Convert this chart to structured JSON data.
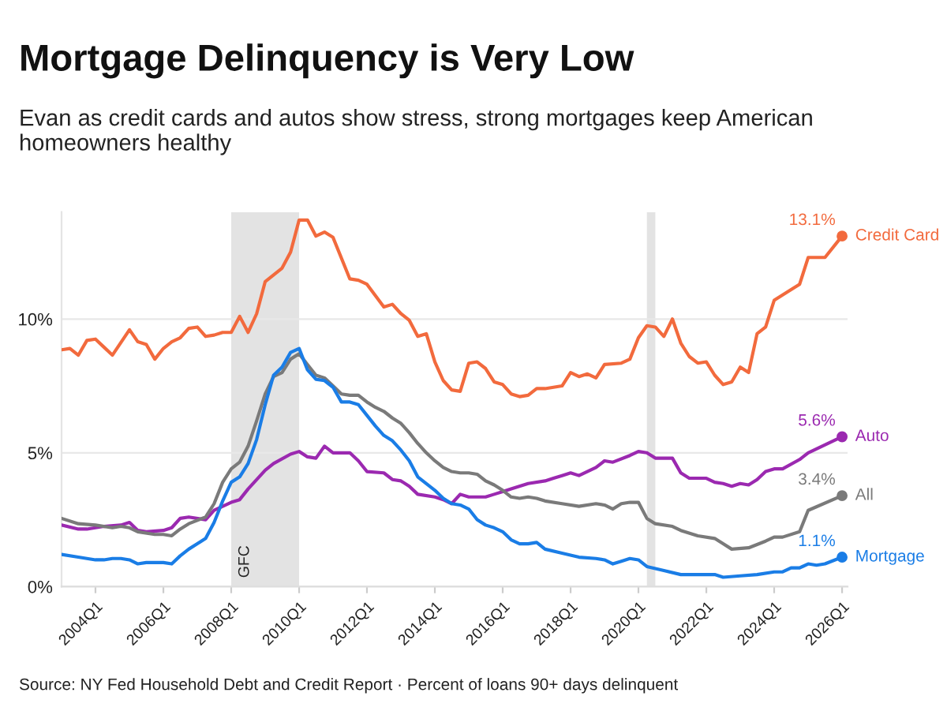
{
  "chart_data": {
    "type": "line",
    "title": "Mortgage Delinquency is Very Low",
    "subtitle": "Evan as credit cards and autos show stress, strong mortgages keep American homeowners healthy",
    "annotations": [
      "Source: NY Fed Household Debt and Credit Report · Percent of loans 90+ days delinquent",
      {
        "text": "13.1%",
        "x": "2026-01",
        "y": 13.1
      },
      {
        "text": "5.6%",
        "x": "2026-01",
        "y": 5.6
      },
      {
        "text": "3.4%",
        "x": "2026-01",
        "y": 3.4
      },
      {
        "text": "1.1%",
        "x": "2026-01",
        "y": 1.1
      }
    ],
    "xlim": [
      "2003-01",
      "2026-03"
    ],
    "xticks": [
      {
        "value": "2004-01",
        "label": "2004Q1"
      },
      {
        "value": "2006-01",
        "label": "2006Q1"
      },
      {
        "value": "2008-01",
        "label": "2008Q1"
      },
      {
        "value": "2010-01",
        "label": "2010Q1"
      },
      {
        "value": "2012-01",
        "label": "2012Q1"
      },
      {
        "value": "2014-01",
        "label": "2014Q1"
      },
      {
        "value": "2016-01",
        "label": "2016Q1"
      },
      {
        "value": "2018-01",
        "label": "2018Q1"
      },
      {
        "value": "2020-01",
        "label": "2020Q1"
      },
      {
        "value": "2022-01",
        "label": "2022Q1"
      },
      {
        "value": "2024-01",
        "label": "2024Q1"
      },
      {
        "value": "2026-01",
        "label": "2026Q1"
      }
    ],
    "ylim": [
      0,
      14
    ],
    "yticks": [
      {
        "value": 0,
        "label": "0%"
      },
      {
        "value": 5,
        "label": "5%"
      },
      {
        "value": 10,
        "label": "10%"
      }
    ],
    "grid": "y",
    "bands": [
      {
        "axis": "x",
        "from": "2008-01",
        "to": "2010-01",
        "label": "GFC",
        "color": "#e3e3e3"
      },
      {
        "axis": "x",
        "from": "2020-04",
        "to": "2020-07",
        "color": "#e3e3e3"
      }
    ],
    "series": [
      {
        "name": "Credit Card",
        "color": "#f26a3d",
        "x": [
          "2003-01",
          "2003-04",
          "2003-07",
          "2003-10",
          "2004-01",
          "2004-04",
          "2004-07",
          "2005-01",
          "2005-04",
          "2005-07",
          "2005-10",
          "2006-01",
          "2006-04",
          "2006-07",
          "2006-10",
          "2007-01",
          "2007-04",
          "2007-07",
          "2007-10",
          "2008-01",
          "2008-04",
          "2008-07",
          "2008-10",
          "2009-01",
          "2009-07",
          "2009-10",
          "2010-01",
          "2010-04",
          "2010-07",
          "2010-10",
          "2011-01",
          "2011-07",
          "2011-10",
          "2012-01",
          "2012-07",
          "2012-10",
          "2013-01",
          "2013-04",
          "2013-07",
          "2013-10",
          "2014-01",
          "2014-04",
          "2014-07",
          "2014-10",
          "2015-01",
          "2015-04",
          "2015-07",
          "2015-10",
          "2016-01",
          "2016-04",
          "2016-07",
          "2016-10",
          "2017-01",
          "2017-04",
          "2017-07",
          "2017-10",
          "2018-01",
          "2018-04",
          "2018-07",
          "2018-10",
          "2019-01",
          "2019-07",
          "2019-10",
          "2020-01",
          "2020-04",
          "2020-07",
          "2020-10",
          "2021-01",
          "2021-04",
          "2021-07",
          "2021-10",
          "2022-01",
          "2022-04",
          "2022-07",
          "2022-10",
          "2023-01",
          "2023-04",
          "2023-07",
          "2023-10",
          "2024-01",
          "2024-04",
          "2024-07",
          "2024-10",
          "2025-01",
          "2025-04",
          "2025-07",
          "2026-01"
        ],
        "values": [
          8.85,
          8.9,
          8.65,
          9.2,
          9.25,
          8.95,
          8.65,
          9.6,
          9.15,
          9.05,
          8.5,
          8.9,
          9.15,
          9.3,
          9.65,
          9.7,
          9.35,
          9.4,
          9.5,
          9.5,
          10.1,
          9.5,
          10.2,
          11.4,
          11.9,
          12.5,
          13.7,
          13.7,
          13.1,
          13.25,
          13.05,
          11.5,
          11.45,
          11.3,
          10.45,
          10.55,
          10.2,
          9.95,
          9.35,
          9.45,
          8.4,
          7.7,
          7.35,
          7.3,
          8.35,
          8.4,
          8.15,
          7.65,
          7.55,
          7.2,
          7.1,
          7.15,
          7.4,
          7.4,
          7.45,
          7.5,
          8.0,
          7.85,
          7.95,
          7.8,
          8.3,
          8.35,
          8.5,
          9.3,
          9.75,
          9.7,
          9.35,
          10.0,
          9.1,
          8.6,
          8.35,
          8.4,
          7.9,
          7.55,
          7.65,
          8.2,
          8.0,
          9.45,
          9.7,
          10.7,
          10.9,
          11.1,
          11.3,
          12.3,
          12.3,
          12.3,
          13.1
        ]
      },
      {
        "name": "Auto",
        "color": "#9b29b0",
        "x": [
          "2003-01",
          "2003-07",
          "2003-10",
          "2004-04",
          "2004-10",
          "2005-01",
          "2005-04",
          "2005-07",
          "2006-01",
          "2006-04",
          "2006-07",
          "2006-10",
          "2007-04",
          "2007-07",
          "2008-01",
          "2008-04",
          "2008-07",
          "2009-01",
          "2009-04",
          "2009-10",
          "2010-01",
          "2010-04",
          "2010-07",
          "2010-10",
          "2011-01",
          "2011-07",
          "2011-10",
          "2012-01",
          "2012-07",
          "2012-10",
          "2013-01",
          "2013-04",
          "2013-07",
          "2014-01",
          "2014-04",
          "2014-07",
          "2014-10",
          "2015-01",
          "2015-07",
          "2015-10",
          "2016-01",
          "2016-04",
          "2016-10",
          "2017-04",
          "2017-07",
          "2017-10",
          "2018-01",
          "2018-04",
          "2018-10",
          "2019-01",
          "2019-04",
          "2019-10",
          "2020-01",
          "2020-04",
          "2020-07",
          "2021-01",
          "2021-04",
          "2021-07",
          "2022-01",
          "2022-04",
          "2022-07",
          "2022-10",
          "2023-01",
          "2023-04",
          "2023-07",
          "2023-10",
          "2024-01",
          "2024-04",
          "2024-10",
          "2025-01",
          "2026-01"
        ],
        "values": [
          2.3,
          2.15,
          2.15,
          2.25,
          2.3,
          2.4,
          2.1,
          2.05,
          2.1,
          2.2,
          2.55,
          2.6,
          2.5,
          2.85,
          3.15,
          3.25,
          3.65,
          4.35,
          4.6,
          4.95,
          5.05,
          4.85,
          4.8,
          5.25,
          5.0,
          5.0,
          4.7,
          4.3,
          4.25,
          4.0,
          3.95,
          3.75,
          3.45,
          3.35,
          3.25,
          3.1,
          3.45,
          3.35,
          3.35,
          3.45,
          3.55,
          3.65,
          3.85,
          3.95,
          4.05,
          4.15,
          4.25,
          4.15,
          4.45,
          4.7,
          4.65,
          4.9,
          5.05,
          5.0,
          4.8,
          4.8,
          4.25,
          4.05,
          4.05,
          3.9,
          3.85,
          3.75,
          3.85,
          3.8,
          4.0,
          4.3,
          4.4,
          4.4,
          4.75,
          5.0,
          5.6
        ]
      },
      {
        "name": "All",
        "color": "#7a7a7a",
        "x": [
          "2003-01",
          "2003-07",
          "2004-01",
          "2004-07",
          "2004-10",
          "2005-01",
          "2005-04",
          "2005-10",
          "2006-01",
          "2006-04",
          "2006-07",
          "2006-10",
          "2007-04",
          "2007-07",
          "2007-10",
          "2008-01",
          "2008-04",
          "2008-07",
          "2008-10",
          "2009-01",
          "2009-04",
          "2009-07",
          "2009-10",
          "2010-01",
          "2010-04",
          "2010-07",
          "2010-10",
          "2011-01",
          "2011-04",
          "2011-07",
          "2011-10",
          "2012-01",
          "2012-04",
          "2012-07",
          "2012-10",
          "2013-01",
          "2013-04",
          "2013-07",
          "2013-10",
          "2014-01",
          "2014-04",
          "2014-07",
          "2014-10",
          "2015-01",
          "2015-04",
          "2015-07",
          "2015-10",
          "2016-01",
          "2016-04",
          "2016-07",
          "2016-10",
          "2017-01",
          "2017-04",
          "2017-10",
          "2018-04",
          "2018-10",
          "2019-01",
          "2019-04",
          "2019-07",
          "2019-10",
          "2020-01",
          "2020-04",
          "2020-07",
          "2021-01",
          "2021-04",
          "2021-10",
          "2022-04",
          "2022-07",
          "2022-10",
          "2023-04",
          "2023-10",
          "2024-01",
          "2024-04",
          "2024-10",
          "2025-01",
          "2026-01"
        ],
        "values": [
          2.55,
          2.35,
          2.3,
          2.2,
          2.25,
          2.2,
          2.05,
          1.95,
          1.95,
          1.9,
          2.15,
          2.35,
          2.6,
          3.1,
          3.9,
          4.4,
          4.65,
          5.25,
          6.2,
          7.2,
          7.85,
          8.0,
          8.5,
          8.7,
          8.3,
          7.9,
          7.8,
          7.5,
          7.2,
          7.15,
          7.15,
          6.9,
          6.7,
          6.55,
          6.3,
          6.1,
          5.75,
          5.35,
          5.0,
          4.7,
          4.45,
          4.3,
          4.25,
          4.25,
          4.2,
          3.95,
          3.8,
          3.6,
          3.35,
          3.3,
          3.35,
          3.3,
          3.2,
          3.1,
          3.0,
          3.1,
          3.05,
          2.9,
          3.1,
          3.15,
          3.15,
          2.55,
          2.35,
          2.25,
          2.1,
          1.9,
          1.8,
          1.6,
          1.4,
          1.45,
          1.7,
          1.85,
          1.85,
          2.05,
          2.85,
          3.4
        ]
      },
      {
        "name": "Mortgage",
        "color": "#1a7de6",
        "x": [
          "2003-01",
          "2003-07",
          "2004-01",
          "2004-04",
          "2004-07",
          "2004-10",
          "2005-01",
          "2005-04",
          "2005-07",
          "2006-01",
          "2006-04",
          "2006-07",
          "2006-10",
          "2007-01",
          "2007-04",
          "2007-07",
          "2007-10",
          "2008-01",
          "2008-04",
          "2008-07",
          "2008-10",
          "2009-01",
          "2009-04",
          "2009-07",
          "2009-10",
          "2010-01",
          "2010-04",
          "2010-07",
          "2010-10",
          "2011-01",
          "2011-04",
          "2011-07",
          "2011-10",
          "2012-01",
          "2012-04",
          "2012-07",
          "2012-10",
          "2013-01",
          "2013-04",
          "2013-07",
          "2013-10",
          "2014-01",
          "2014-04",
          "2014-07",
          "2014-10",
          "2015-01",
          "2015-04",
          "2015-07",
          "2015-10",
          "2016-01",
          "2016-04",
          "2016-07",
          "2016-10",
          "2017-01",
          "2017-04",
          "2017-10",
          "2018-04",
          "2018-10",
          "2019-01",
          "2019-04",
          "2019-07",
          "2019-10",
          "2020-01",
          "2020-04",
          "2020-10",
          "2021-04",
          "2021-10",
          "2022-04",
          "2022-07",
          "2023-01",
          "2023-07",
          "2024-01",
          "2024-04",
          "2024-07",
          "2024-10",
          "2025-01",
          "2025-04",
          "2025-07",
          "2026-01"
        ],
        "values": [
          1.2,
          1.1,
          1.0,
          1.0,
          1.05,
          1.05,
          1.0,
          0.85,
          0.9,
          0.9,
          0.85,
          1.15,
          1.4,
          1.6,
          1.8,
          2.4,
          3.2,
          3.9,
          4.1,
          4.6,
          5.5,
          6.8,
          7.9,
          8.2,
          8.75,
          8.9,
          8.1,
          7.75,
          7.7,
          7.45,
          6.9,
          6.9,
          6.8,
          6.4,
          6.0,
          5.65,
          5.45,
          5.1,
          4.7,
          4.1,
          3.85,
          3.6,
          3.3,
          3.1,
          3.05,
          2.9,
          2.5,
          2.3,
          2.2,
          2.05,
          1.75,
          1.6,
          1.6,
          1.65,
          1.4,
          1.25,
          1.1,
          1.05,
          1.0,
          0.85,
          0.95,
          1.05,
          1.0,
          0.75,
          0.6,
          0.45,
          0.45,
          0.45,
          0.35,
          0.4,
          0.45,
          0.55,
          0.55,
          0.7,
          0.7,
          0.85,
          0.8,
          0.85,
          1.1
        ]
      }
    ]
  }
}
